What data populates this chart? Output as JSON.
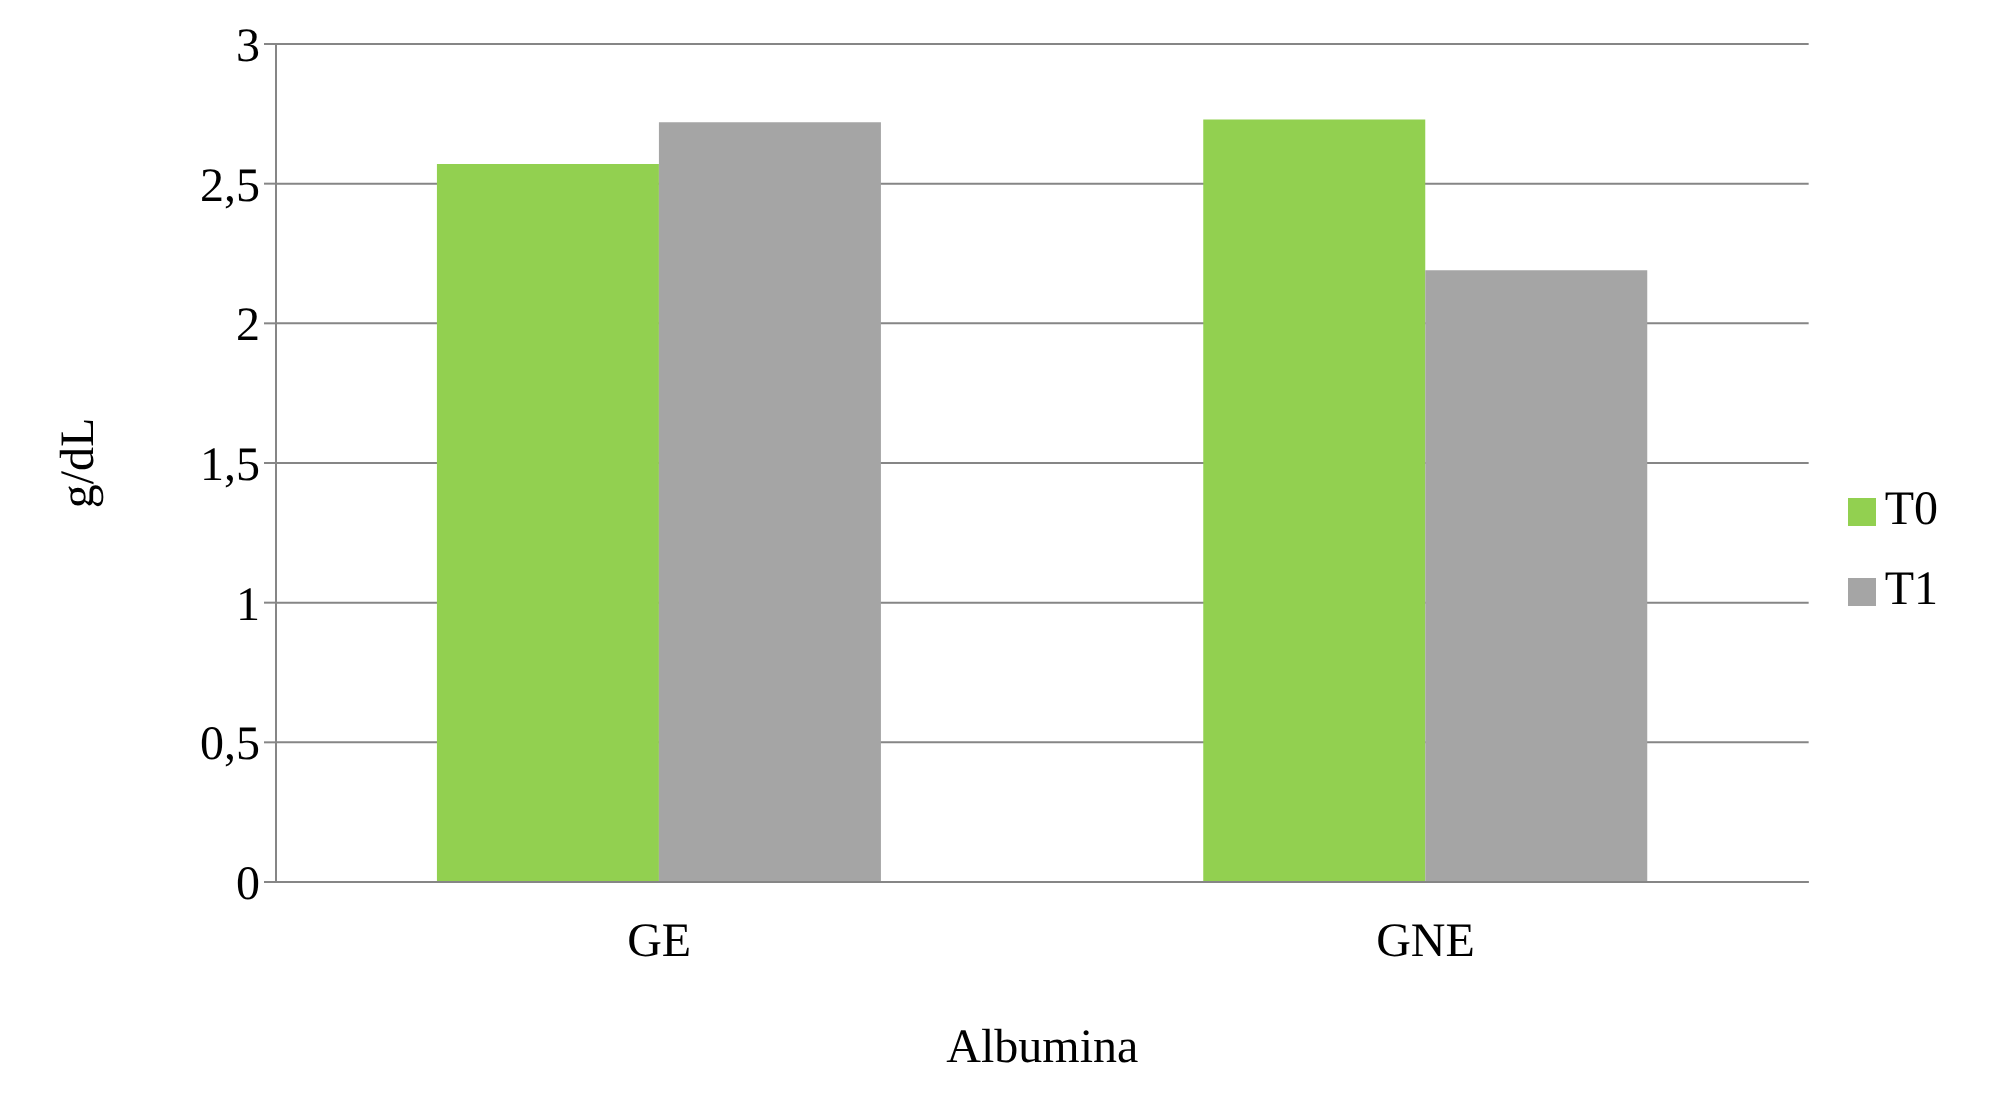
{
  "chart_data": {
    "type": "bar",
    "xlabel": "Albumina",
    "ylabel": "g/dL",
    "categories": [
      "GE",
      "GNE"
    ],
    "series": [
      {
        "name": "T0",
        "color": "#92d050",
        "values": [
          2.57,
          2.73
        ]
      },
      {
        "name": "T1",
        "color": "#a5a5a5",
        "values": [
          2.72,
          2.19
        ]
      }
    ],
    "ylim": [
      0,
      3
    ],
    "yticks": [
      0,
      {
        "value": 0.5,
        "label": "0,5"
      },
      1,
      {
        "value": 1.5,
        "label": "1,5"
      },
      2,
      {
        "value": 2.5,
        "label": "2,5"
      },
      3
    ],
    "grid": "y",
    "legend": "right"
  }
}
